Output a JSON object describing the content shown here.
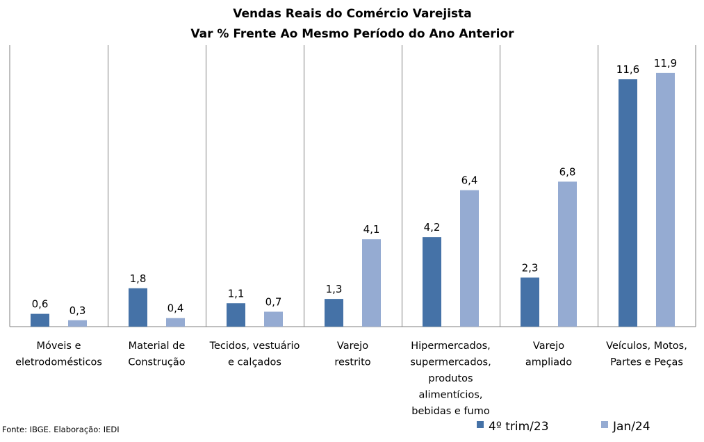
{
  "chart_data": {
    "type": "bar",
    "title": "Vendas Reais do Comércio Varejista",
    "subtitle": "Var % Frente Ao Mesmo Período do Ano Anterior",
    "categories": [
      [
        "Móveis e",
        "eletrodomésticos"
      ],
      [
        "Material de",
        "Construção"
      ],
      [
        "Tecidos, vestuário",
        "e calçados"
      ],
      [
        "Varejo",
        "restrito"
      ],
      [
        "Hipermercados,",
        "supermercados,",
        "produtos",
        "alimentícios,",
        "bebidas e fumo"
      ],
      [
        "Varejo",
        "ampliado"
      ],
      [
        "Veículos, Motos,",
        "Partes e Peças"
      ]
    ],
    "series": [
      {
        "name": "4º trim/23",
        "color": "#4572A7",
        "values": [
          0.6,
          1.8,
          1.1,
          1.3,
          4.2,
          2.3,
          11.6
        ],
        "labels": [
          "0,6",
          "1,8",
          "1,1",
          "1,3",
          "4,2",
          "2,3",
          "11,6"
        ]
      },
      {
        "name": "Jan/24",
        "color": "#95ABD2",
        "values": [
          0.3,
          0.4,
          0.7,
          4.1,
          6.4,
          6.8,
          11.9
        ],
        "labels": [
          "0,3",
          "0,4",
          "0,7",
          "4,1",
          "6,4",
          "6,8",
          "11,9"
        ]
      }
    ],
    "ylim": [
      0,
      13.2
    ],
    "grid": false,
    "legend": "bottom-right",
    "source": "Fonte: IBGE. Elaboração: IEDI"
  }
}
